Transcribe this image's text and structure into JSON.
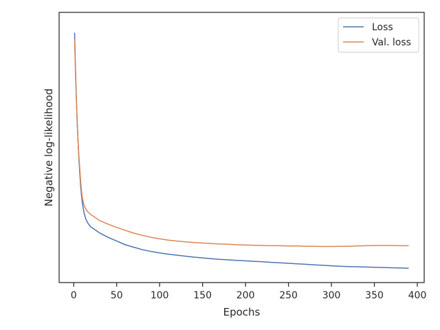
{
  "chart_data": {
    "type": "line",
    "xlabel": "Epochs",
    "ylabel": "Negative log-likelihood",
    "xlim": [
      -17,
      408
    ],
    "ylim": [
      0,
      1
    ],
    "xticks": [
      0,
      50,
      100,
      150,
      200,
      250,
      300,
      350,
      400
    ],
    "yticks": [],
    "grid": false,
    "legend": {
      "placement": "top-right"
    },
    "series": [
      {
        "name": "Loss",
        "color": "#4c72b0",
        "x": [
          1,
          2,
          3,
          4,
          5,
          6,
          7,
          8,
          9,
          10,
          12,
          14,
          16,
          18,
          20,
          25,
          30,
          40,
          50,
          60,
          70,
          80,
          90,
          100,
          110,
          120,
          130,
          140,
          150,
          160,
          170,
          180,
          190,
          200,
          210,
          220,
          230,
          240,
          250,
          260,
          270,
          280,
          290,
          300,
          310,
          320,
          330,
          340,
          350,
          360,
          370,
          380,
          390
        ],
        "y": [
          0.957,
          0.82,
          0.7,
          0.6,
          0.52,
          0.45,
          0.39,
          0.34,
          0.3,
          0.27,
          0.23,
          0.205,
          0.19,
          0.18,
          0.172,
          0.16,
          0.148,
          0.13,
          0.115,
          0.1,
          0.09,
          0.08,
          0.073,
          0.067,
          0.062,
          0.058,
          0.054,
          0.05,
          0.047,
          0.044,
          0.041,
          0.039,
          0.037,
          0.035,
          0.033,
          0.031,
          0.029,
          0.027,
          0.025,
          0.023,
          0.021,
          0.019,
          0.017,
          0.015,
          0.013,
          0.012,
          0.011,
          0.01,
          0.009,
          0.008,
          0.007,
          0.006,
          0.005
        ]
      },
      {
        "name": "Val. loss",
        "color": "#dd8452",
        "x": [
          1,
          2,
          3,
          4,
          5,
          6,
          7,
          8,
          9,
          10,
          12,
          14,
          16,
          18,
          20,
          25,
          30,
          40,
          50,
          60,
          70,
          80,
          90,
          100,
          110,
          120,
          130,
          140,
          150,
          160,
          170,
          180,
          190,
          200,
          210,
          220,
          230,
          240,
          250,
          260,
          270,
          280,
          290,
          300,
          310,
          320,
          330,
          340,
          350,
          360,
          370,
          380,
          390
        ],
        "y": [
          0.93,
          0.8,
          0.69,
          0.6,
          0.52,
          0.46,
          0.41,
          0.36,
          0.32,
          0.29,
          0.26,
          0.245,
          0.235,
          0.228,
          0.222,
          0.21,
          0.198,
          0.183,
          0.17,
          0.158,
          0.147,
          0.138,
          0.13,
          0.124,
          0.119,
          0.115,
          0.112,
          0.109,
          0.107,
          0.105,
          0.103,
          0.102,
          0.1,
          0.099,
          0.098,
          0.097,
          0.096,
          0.096,
          0.095,
          0.095,
          0.094,
          0.094,
          0.093,
          0.093,
          0.094,
          0.094,
          0.095,
          0.096,
          0.097,
          0.097,
          0.097,
          0.096,
          0.096
        ]
      }
    ]
  }
}
